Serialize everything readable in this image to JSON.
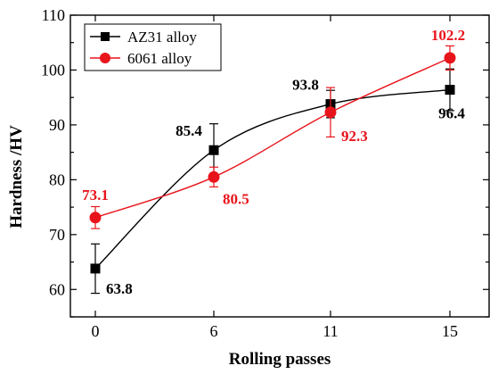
{
  "chart_data": {
    "type": "line",
    "xlabel": "Rolling passes",
    "ylabel": "Hardness /HV",
    "x": [
      0,
      6,
      11,
      15
    ],
    "xticks": [
      "0",
      "6",
      "11",
      "15"
    ],
    "ylim": [
      55,
      110
    ],
    "yticks": [
      60,
      70,
      80,
      90,
      100,
      110
    ],
    "grid": false,
    "legend_position": "top-left",
    "series": [
      {
        "name": "AZ31 alloy",
        "color": "#000000",
        "marker": "square",
        "values": [
          63.8,
          85.4,
          93.8,
          96.4
        ],
        "errors": [
          4.5,
          4.8,
          2.5,
          3.8
        ],
        "labels": [
          "63.8",
          "85.4",
          "93.8",
          "96.4"
        ]
      },
      {
        "name": "6061 alloy",
        "color": "#e8141b",
        "marker": "circle",
        "values": [
          73.1,
          80.5,
          92.3,
          102.2
        ],
        "errors": [
          2.0,
          1.8,
          4.5,
          2.2
        ],
        "labels": [
          "73.1",
          "80.5",
          "92.3",
          "102.2"
        ]
      }
    ]
  }
}
